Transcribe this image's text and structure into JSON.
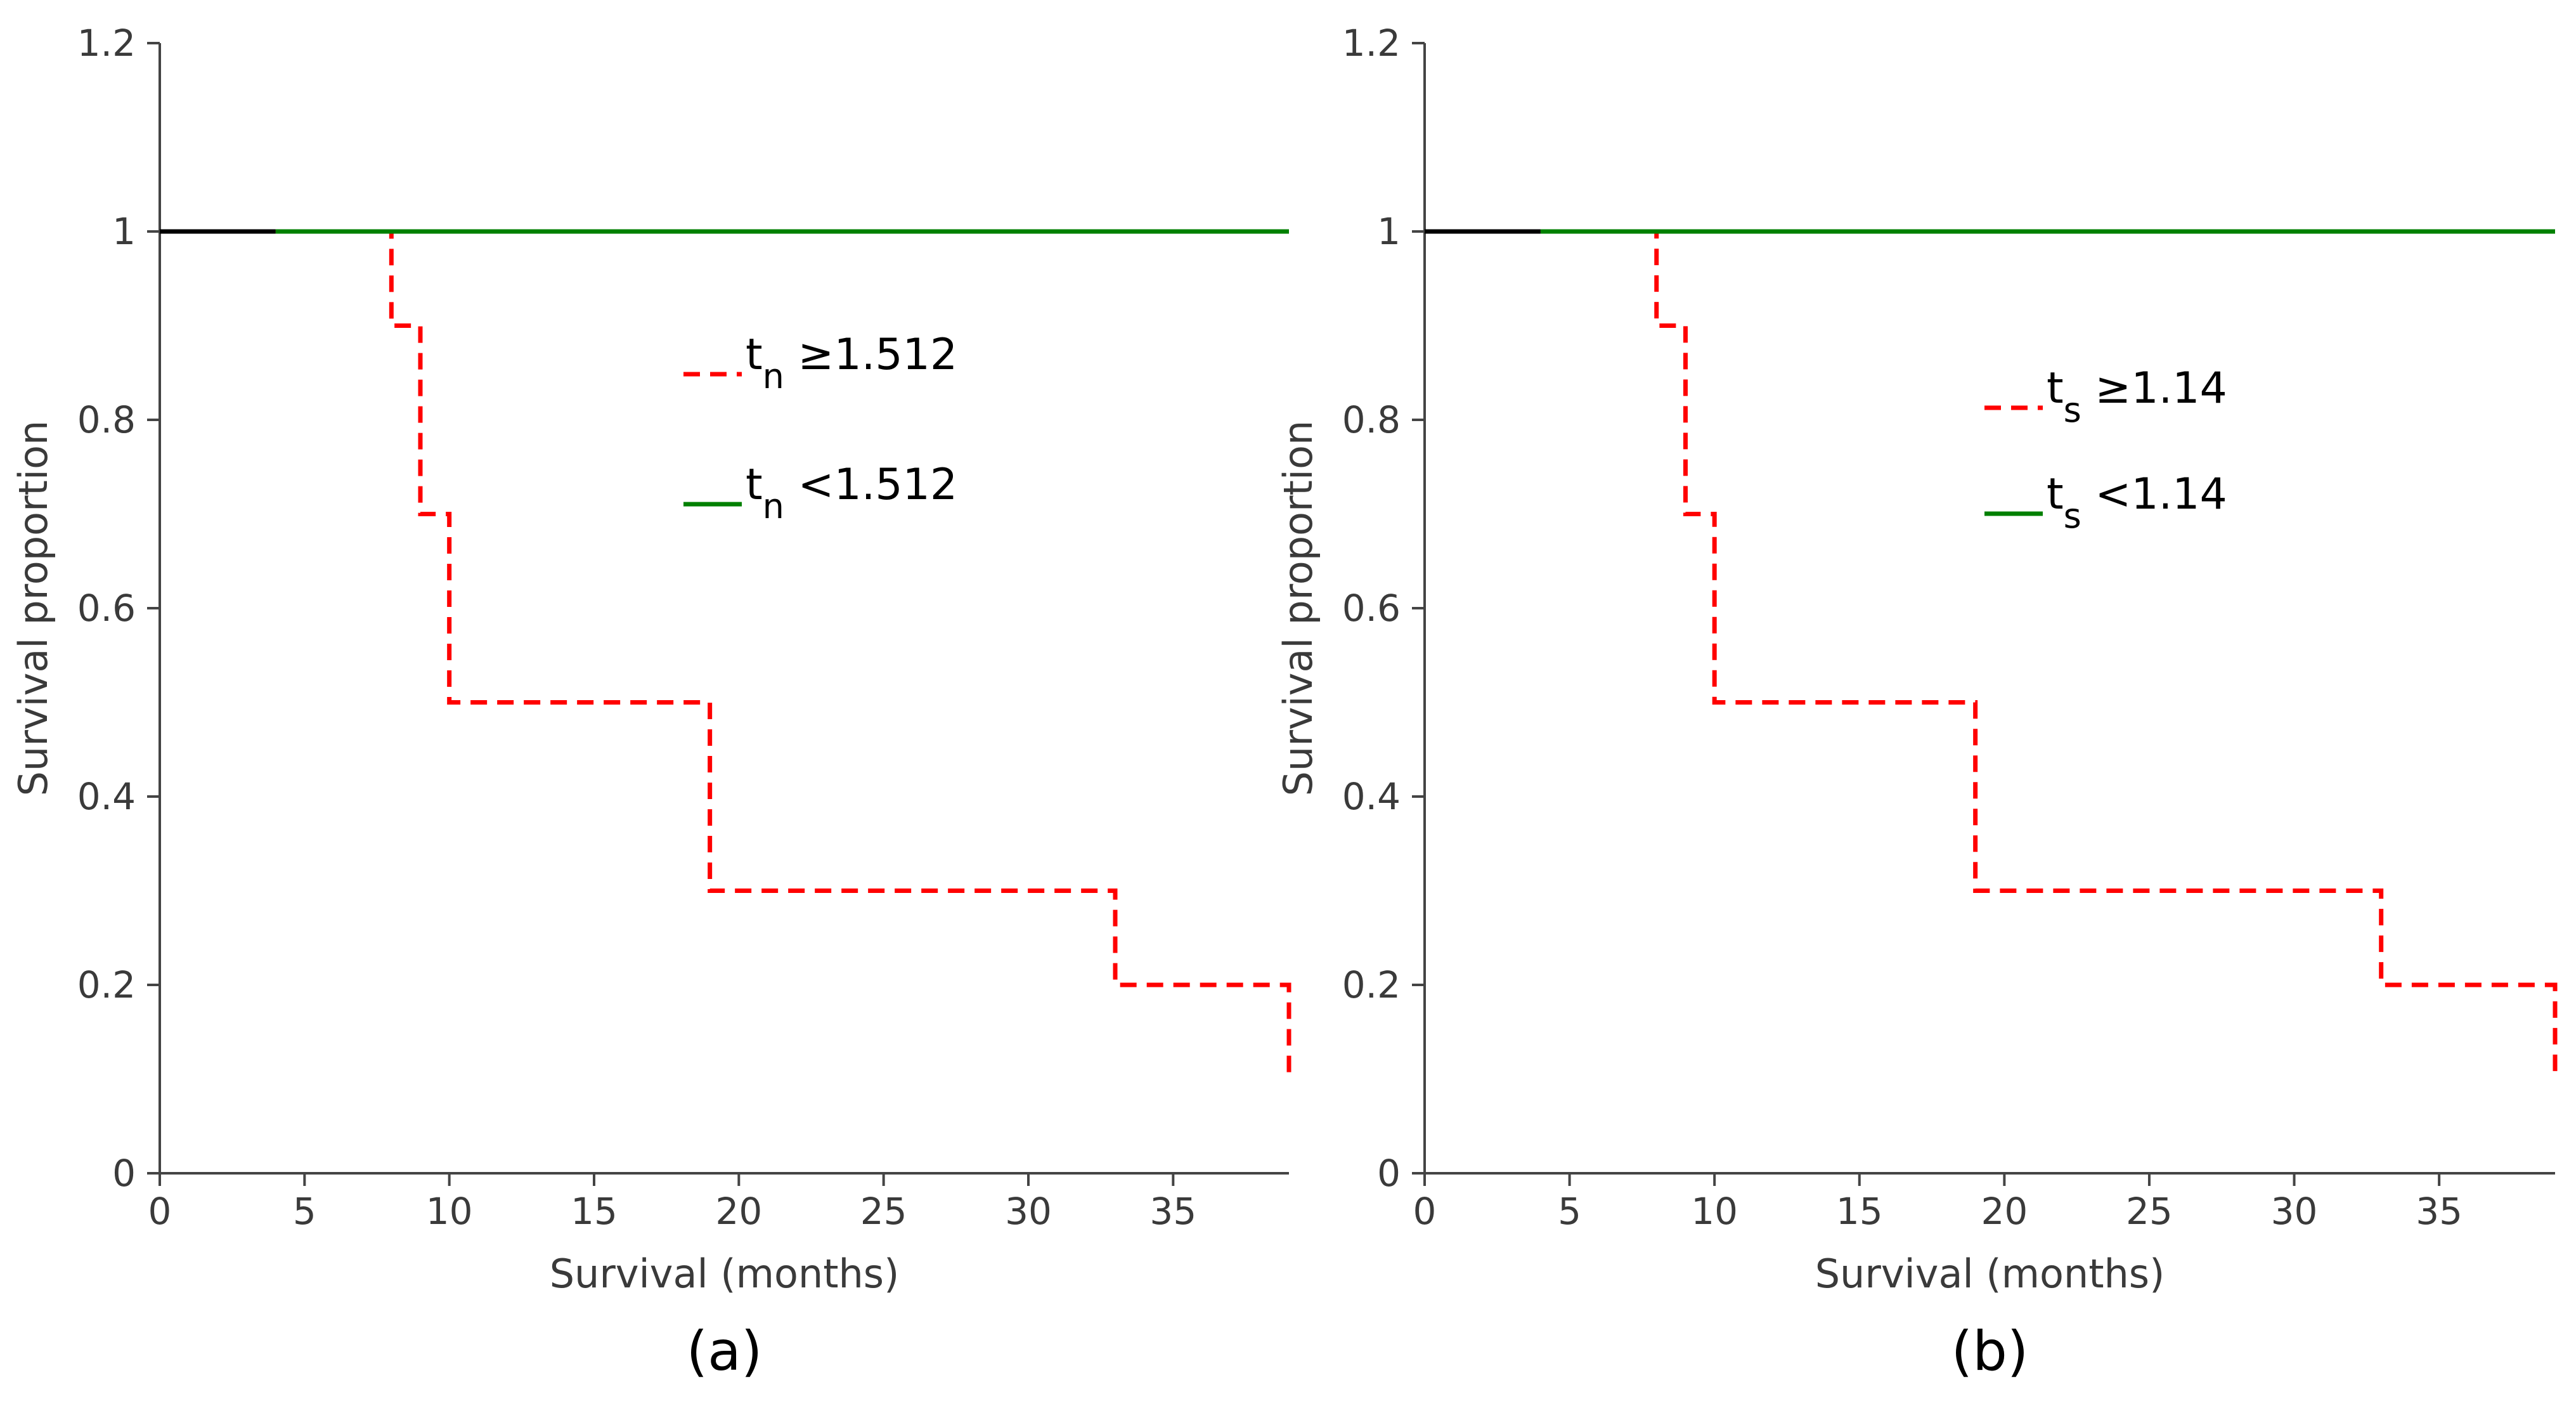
{
  "chart_data": [
    {
      "type": "line",
      "step": true,
      "panel_label": "(a)",
      "xlabel": "Survival (months)",
      "ylabel": "Survival proportion",
      "xlim": [
        0,
        39
      ],
      "ylim": [
        0,
        1.2
      ],
      "xticks": [
        0,
        5,
        10,
        15,
        20,
        25,
        30,
        35
      ],
      "yticks": [
        0,
        0.2,
        0.4,
        0.6,
        0.8,
        1,
        1.2
      ],
      "ytick_labels": [
        "0",
        "0.2",
        "0.4",
        "0.6",
        "0.8",
        "1",
        "1.2"
      ],
      "legend_placement": "center",
      "shared_start": {
        "x": [
          0,
          4
        ],
        "y": [
          1,
          1
        ],
        "color": "#000000"
      },
      "series": [
        {
          "name_main": "t",
          "name_sub": "n",
          "name_rest": " ≥1.512",
          "color": "#ff0000",
          "dashed": true,
          "x": [
            4,
            8,
            9,
            10,
            19,
            33,
            39
          ],
          "y": [
            1,
            0.9,
            0.7,
            0.5,
            0.3,
            0.2,
            0.1
          ]
        },
        {
          "name_main": "t",
          "name_sub": "n",
          "name_rest": " <1.512",
          "color": "#008000",
          "dashed": false,
          "x": [
            4,
            39
          ],
          "y": [
            1,
            1
          ]
        }
      ]
    },
    {
      "type": "line",
      "step": true,
      "panel_label": "(b)",
      "xlabel": "Survival (months)",
      "ylabel": "Survival proportion",
      "xlim": [
        0,
        39
      ],
      "ylim": [
        0,
        1.2
      ],
      "xticks": [
        0,
        5,
        10,
        15,
        20,
        25,
        30,
        35
      ],
      "yticks": [
        0,
        0.2,
        0.4,
        0.6,
        0.8,
        1,
        1.2
      ],
      "ytick_labels": [
        "0",
        "0.2",
        "0.4",
        "0.6",
        "0.8",
        "1",
        "1.2"
      ],
      "legend_placement": "center-right",
      "shared_start": {
        "x": [
          0,
          4
        ],
        "y": [
          1,
          1
        ],
        "color": "#000000"
      },
      "series": [
        {
          "name_main": "t",
          "name_sub": "s",
          "name_rest": " ≥1.14",
          "color": "#ff0000",
          "dashed": true,
          "x": [
            4,
            8,
            9,
            10,
            19,
            33,
            39
          ],
          "y": [
            1,
            0.9,
            0.7,
            0.5,
            0.3,
            0.2,
            0.1
          ]
        },
        {
          "name_main": "t",
          "name_sub": "s",
          "name_rest": " <1.14",
          "color": "#008000",
          "dashed": false,
          "x": [
            4,
            39
          ],
          "y": [
            1,
            1
          ]
        }
      ]
    }
  ]
}
